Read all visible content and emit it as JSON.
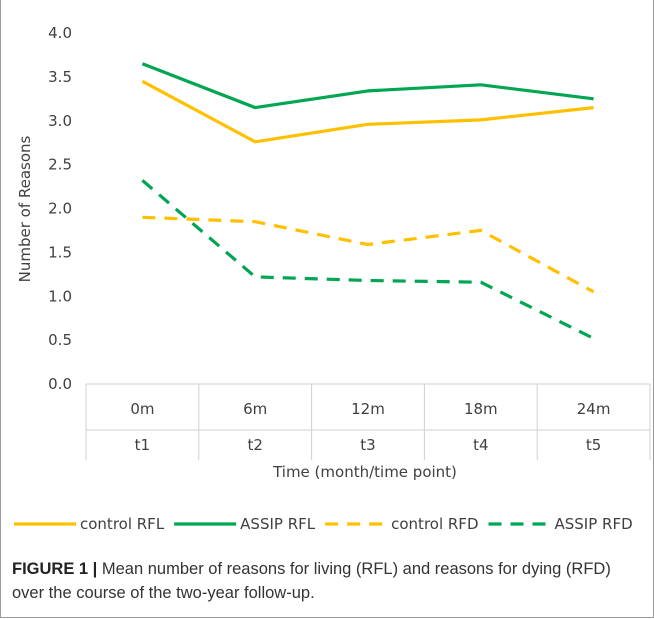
{
  "chart_data": {
    "type": "line",
    "categories": [
      [
        "0m",
        "t1"
      ],
      [
        "6m",
        "t2"
      ],
      [
        "12m",
        "t3"
      ],
      [
        "18m",
        "t4"
      ],
      [
        "24m",
        "t5"
      ]
    ],
    "x_level1": [
      "0m",
      "6m",
      "12m",
      "18m",
      "24m"
    ],
    "x_level2": [
      "t1",
      "t2",
      "t3",
      "t4",
      "t5"
    ],
    "xlabel": "Time (month/time point)",
    "ylabel": "Number of Reasons",
    "ylim": [
      0,
      4
    ],
    "yticks": [
      "0.0",
      "0.5",
      "1.0",
      "1.5",
      "2.0",
      "2.5",
      "3.0",
      "3.5",
      "4.0"
    ],
    "grid": false,
    "legend": "bottom",
    "series": [
      {
        "name": "control RFL",
        "values": [
          3.45,
          2.76,
          2.96,
          3.01,
          3.15
        ],
        "color": "#FFC000",
        "dash": "solid"
      },
      {
        "name": "ASSIP RFL",
        "values": [
          3.65,
          3.15,
          3.34,
          3.41,
          3.25
        ],
        "color": "#00A651",
        "dash": "dashed-no",
        "style": "solid"
      },
      {
        "name": "control RFD",
        "values": [
          1.9,
          1.85,
          1.59,
          1.75,
          1.05
        ],
        "color": "#FFC000",
        "style": "dashed"
      },
      {
        "name": "ASSIP RFD",
        "values": [
          2.32,
          1.22,
          1.18,
          1.16,
          0.52
        ],
        "color": "#00A651",
        "style": "dashed"
      }
    ]
  },
  "caption": {
    "label": "FIGURE 1 |",
    "text": " Mean number of reasons for living (RFL) and reasons for dying (RFD) over the course of the two-year follow-up."
  }
}
